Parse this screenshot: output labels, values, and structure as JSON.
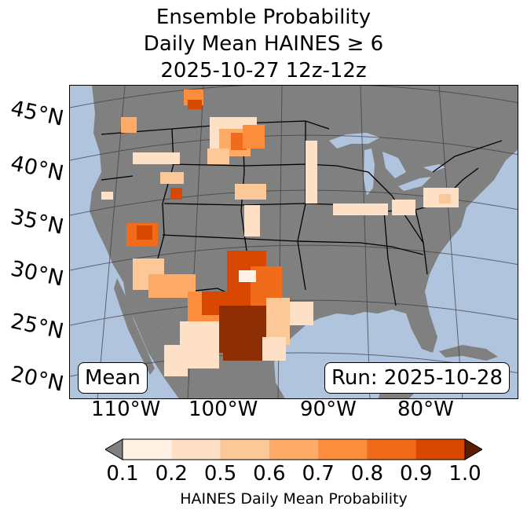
{
  "title": {
    "line1": "Ensemble Probability",
    "line2": "Daily Mean HAINES ≥ 6",
    "line3": "2025-10-27 12z-12z"
  },
  "map": {
    "ocean_color": "#b0c4de",
    "land_color": "#808080",
    "lat_labels": [
      "45°N",
      "40°N",
      "35°N",
      "30°N",
      "25°N",
      "20°N"
    ],
    "lon_labels": [
      "110°W",
      "100°W",
      "90°W",
      "80°W"
    ],
    "stat_label": "Mean",
    "run_label": "Run: 2025-10-28"
  },
  "colorbar": {
    "ticks": [
      "0.1",
      "0.2",
      "0.5",
      "0.6",
      "0.7",
      "0.8",
      "0.9",
      "1.0"
    ],
    "colors": [
      "#fff1e3",
      "#fde0c5",
      "#fdc897",
      "#fdab67",
      "#fb8d3d",
      "#f16c1a",
      "#d94801"
    ],
    "under_color": "#808080",
    "over_color": "#8c2d04",
    "label": "HAINES Daily Mean Probability"
  }
}
